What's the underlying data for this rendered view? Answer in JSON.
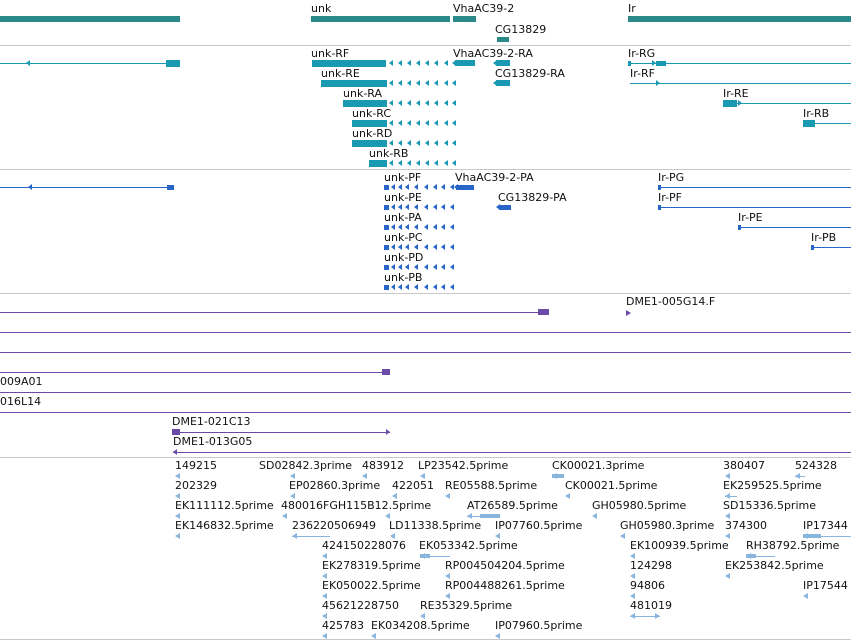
{
  "colors": {
    "gene": "#2a8a8a",
    "transcript": "#1a9ab2",
    "protein": "#2766c8",
    "clone": "#6b4ba8",
    "est": "#8ab6de",
    "separator": "#c8c8c8"
  },
  "tracks": {
    "genes": {
      "labels": [
        "unk",
        "VhaAC39-2",
        "Ir",
        "CG13829"
      ]
    },
    "transcripts": {
      "labels": [
        "unk-RF",
        "VhaAC39-2-RA",
        "Ir-RG",
        "unk-RE",
        "CG13829-RA",
        "Ir-RF",
        "unk-RA",
        "Ir-RE",
        "unk-RC",
        "Ir-RB",
        "unk-RD",
        "unk-RB"
      ]
    },
    "proteins": {
      "labels": [
        "unk-PF",
        "VhaAC39-2-PA",
        "Ir-PG",
        "unk-PE",
        "CG13829-PA",
        "Ir-PF",
        "unk-PA",
        "Ir-PE",
        "unk-PC",
        "Ir-PB",
        "unk-PD",
        "unk-PB"
      ]
    },
    "clones": {
      "labels": [
        "DME1-005G14.F",
        "009A01",
        "016L14",
        "DME1-021C13",
        "DME1-013G05"
      ]
    },
    "ests": {
      "labels": [
        "149215",
        "SD02842.3prime",
        "483912",
        "LP23542.5prime",
        "CK00021.3prime",
        "380407",
        "524328",
        "202329",
        "EP02860.3prime",
        "422051",
        "RE05588.5prime",
        "CK00021.5prime",
        "EK259525.5prime",
        "EK111112.5prime",
        "480016FGH115B12.5prime",
        "AT26589.5prime",
        "GH05980.5prime",
        "SD15336.5prime",
        "EK146832.5prime",
        "236220506949",
        "LD11338.5prime",
        "IP07760.5prime",
        "GH05980.3prime",
        "374300",
        "IP17344",
        "424150228076",
        "EK053342.5prime",
        "EK100939.5prime",
        "RH38792.5prime",
        "EK278319.5prime",
        "RP004504204.5prime",
        "124298",
        "EK253842.5prime",
        "EK050022.5prime",
        "RP004488261.5prime",
        "94806",
        "IP17544",
        "45621228750",
        "RE35329.5prime",
        "481019",
        "425783",
        "EK034208.5prime",
        "IP07960.5prime"
      ]
    }
  }
}
